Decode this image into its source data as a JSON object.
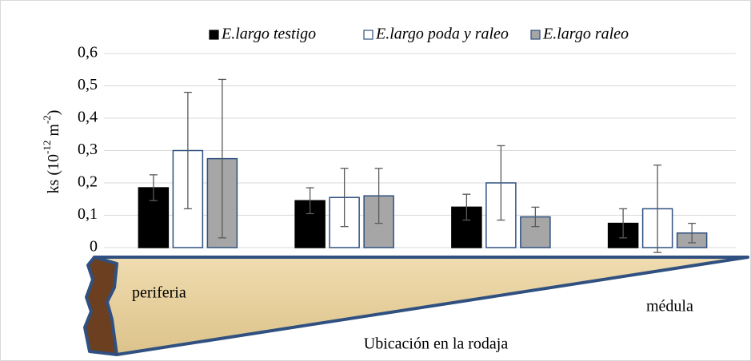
{
  "chart_data": {
    "type": "bar",
    "ylabel_parts": [
      "ks (10",
      "-12",
      " m",
      "-2",
      ")"
    ],
    "xlabel": "Ubicación en la rodaja",
    "annotations": [
      "periferia",
      "médula"
    ],
    "categories": [
      null,
      null,
      null,
      null
    ],
    "series": [
      {
        "name": "E.largo testigo",
        "color": "#000000",
        "values": [
          0.185,
          0.145,
          0.125,
          0.075
        ],
        "errors": [
          0.04,
          0.04,
          0.04,
          0.045
        ]
      },
      {
        "name": "E.largo poda y raleo",
        "color": "#ffffff",
        "values": [
          0.3,
          0.155,
          0.2,
          0.12
        ],
        "errors": [
          0.18,
          0.09,
          0.115,
          0.135
        ]
      },
      {
        "name": "E.largo raleo",
        "color": "#a6a6a6",
        "values": [
          0.275,
          0.16,
          0.095,
          0.045
        ],
        "errors": [
          0.245,
          0.085,
          0.03,
          0.03
        ]
      }
    ],
    "ylim": [
      0,
      0.6
    ],
    "yticks": [
      0,
      {
        "value": 0.1,
        "label": "0,1"
      },
      {
        "value": 0.2,
        "label": "0,2"
      },
      {
        "value": 0.3,
        "label": "0,3"
      },
      {
        "value": 0.4,
        "label": "0,4"
      },
      {
        "value": 0.5,
        "label": "0,5"
      },
      {
        "value": 0.6,
        "label": "0,6"
      }
    ],
    "grid": true,
    "legend": "top"
  }
}
